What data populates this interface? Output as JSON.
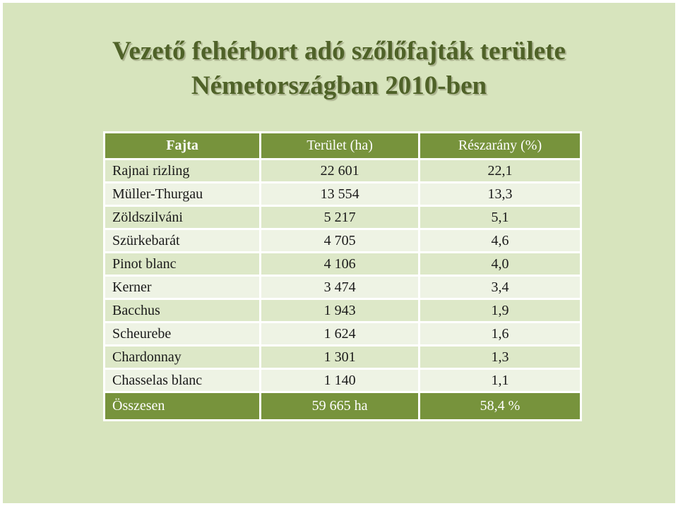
{
  "title": {
    "line1": "Vezető fehérbort adó szőlőfajták területe",
    "line2": "Németországban 2010-ben"
  },
  "table": {
    "headers": [
      "Fajta",
      "Terület (ha)",
      "Részarány (%)"
    ],
    "rows": [
      [
        "Rajnai rizling",
        "22 601",
        "22,1"
      ],
      [
        "Müller-Thurgau",
        "13 554",
        "13,3"
      ],
      [
        "Zöldszilváni",
        "5 217",
        "5,1"
      ],
      [
        "Szürkebarát",
        "4 705",
        "4,6"
      ],
      [
        "Pinot blanc",
        "4 106",
        "4,0"
      ],
      [
        "Kerner",
        "3 474",
        "3,4"
      ],
      [
        "Bacchus",
        "1 943",
        "1,9"
      ],
      [
        "Scheurebe",
        "1 624",
        "1,6"
      ],
      [
        "Chardonnay",
        "1 301",
        "1,3"
      ],
      [
        "Chasselas blanc",
        "1 140",
        "1,1"
      ]
    ],
    "total": [
      "Összesen",
      "59 665 ha",
      "58,4 %"
    ]
  },
  "colors": {
    "background": "#d7e4bd",
    "title": "#4f6228",
    "header": "#77933c",
    "row_dark": "#dde8c8",
    "row_light": "#eef3e4"
  }
}
